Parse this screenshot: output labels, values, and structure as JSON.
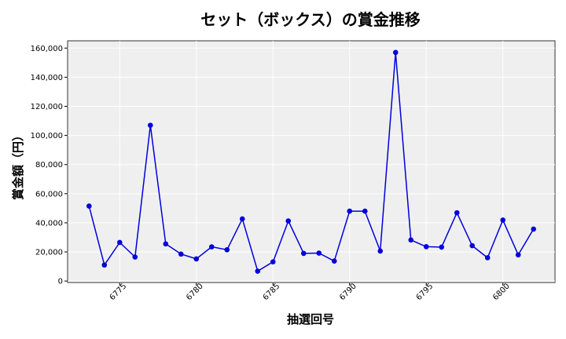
{
  "chart_data": {
    "type": "line",
    "title": "セット（ボックス）の賞金推移",
    "xlabel": "抽選回号",
    "ylabel": "賞金額（円）",
    "x": [
      6773,
      6774,
      6775,
      6776,
      6777,
      6778,
      6779,
      6780,
      6781,
      6782,
      6783,
      6784,
      6785,
      6786,
      6787,
      6788,
      6789,
      6790,
      6791,
      6792,
      6793,
      6794,
      6795,
      6796,
      6797,
      6798,
      6799,
      6800,
      6801,
      6802
    ],
    "series": [
      {
        "values": [
          51500,
          11000,
          26500,
          16500,
          107000,
          25500,
          18500,
          15200,
          23500,
          21500,
          42700,
          6800,
          13200,
          41300,
          19000,
          19200,
          13700,
          48000,
          48000,
          20600,
          157000,
          28200,
          23600,
          23300,
          46900,
          24300,
          16000,
          41900,
          18000,
          35700
        ],
        "color": "#0000dd"
      }
    ],
    "xticks": [
      6775,
      6780,
      6785,
      6790,
      6795,
      6800
    ],
    "xtick_labels": [
      "6775",
      "6780",
      "6785",
      "6790",
      "6795",
      "6800"
    ],
    "yticks": [
      0,
      20000,
      40000,
      60000,
      80000,
      100000,
      120000,
      140000,
      160000
    ],
    "ytick_labels": [
      "0",
      "20,000",
      "40,000",
      "60,000",
      "80,000",
      "100,000",
      "120,000",
      "140,000",
      "160,000"
    ],
    "xlim": [
      6771.6,
      6803.4
    ],
    "ylim": [
      -1000,
      165000
    ],
    "grid": true,
    "background_color": "#efefef"
  }
}
